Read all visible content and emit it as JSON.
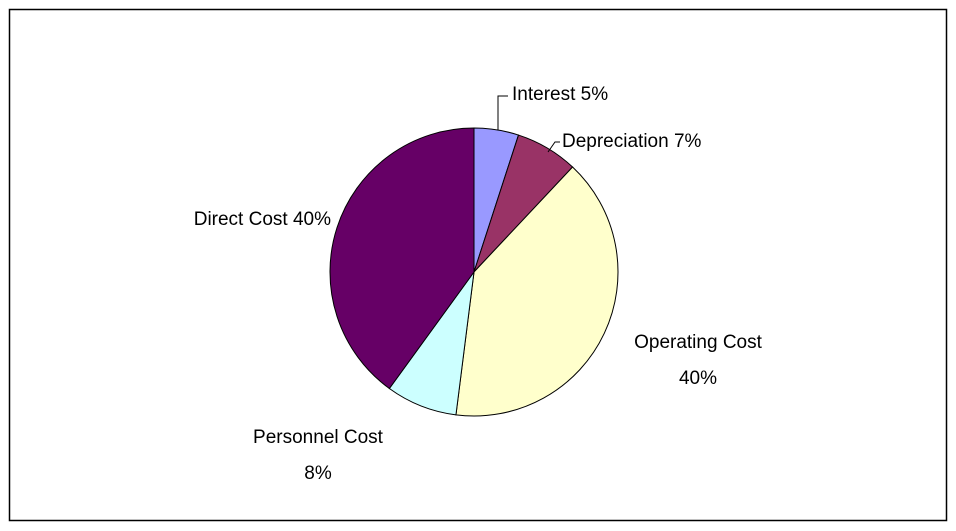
{
  "chart_data": {
    "type": "pie",
    "categories": [
      "Interest",
      "Depreciation",
      "Operating Cost",
      "Personnel Cost",
      "Direct Cost"
    ],
    "values": [
      5,
      7,
      40,
      8,
      40
    ],
    "value_labels": [
      "5%",
      "7%",
      "40%",
      "8%",
      "40%"
    ],
    "colors": [
      "#9999ff",
      "#993366",
      "#ffffcc",
      "#ccffff",
      "#660066"
    ]
  }
}
